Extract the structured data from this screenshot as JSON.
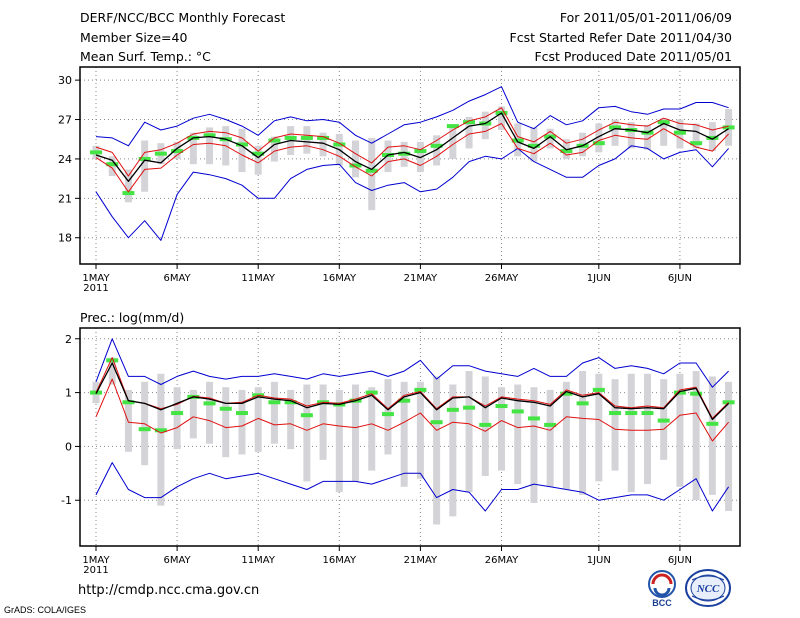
{
  "header": {
    "title": "DERF/NCC/BCC Monthly Forecast",
    "member": "Member Size=40",
    "variable": "Mean Surf. Temp.: °C",
    "period": "For 2011/05/01-2011/06/09",
    "start_date": "Fcst Started Refer Date 2011/04/30",
    "produced": "Fcst Produced Date 2011/05/01"
  },
  "footer": {
    "url": "http://cmdp.ncc.cma.gov.cn",
    "credit": "GrADS: COLA/IGES",
    "logo_left_text": "BCC",
    "logo_right_text": "NCC"
  },
  "colors": {
    "envelope": "#0000d0",
    "spread": "#e01010",
    "mean": "#000000",
    "box": "#d4d4d8",
    "median": "#44e444",
    "grid": "#888888"
  },
  "chart_data": [
    {
      "type": "line",
      "title": "Mean Surf. Temp.: °C",
      "xlabel": "",
      "ylabel": "°C",
      "ylim": [
        16,
        31
      ],
      "yticks": [
        18,
        21,
        24,
        27,
        30
      ],
      "x_tick_labels": [
        {
          "day": 1,
          "label": "1MAY",
          "sub": "2011"
        },
        {
          "day": 6,
          "label": "6MAY"
        },
        {
          "day": 11,
          "label": "11MAY"
        },
        {
          "day": 16,
          "label": "16MAY"
        },
        {
          "day": 21,
          "label": "21MAY"
        },
        {
          "day": 26,
          "label": "26MAY"
        },
        {
          "day": 32,
          "label": "1JUN"
        },
        {
          "day": 37,
          "label": "6JUN"
        }
      ],
      "days": [
        1,
        2,
        3,
        4,
        5,
        6,
        7,
        8,
        9,
        10,
        11,
        12,
        13,
        14,
        15,
        16,
        17,
        18,
        19,
        20,
        21,
        22,
        23,
        24,
        25,
        26,
        27,
        28,
        29,
        30,
        31,
        32,
        33,
        34,
        35,
        36,
        37,
        38,
        39,
        40
      ],
      "max": [
        25.7,
        25.6,
        25.0,
        26.8,
        26.2,
        26.5,
        27.1,
        27.4,
        27.0,
        26.5,
        25.8,
        26.9,
        27.2,
        26.9,
        27.0,
        26.8,
        25.8,
        25.2,
        25.9,
        26.6,
        26.8,
        27.2,
        27.7,
        28.4,
        28.9,
        29.5,
        26.8,
        26.3,
        27.3,
        26.6,
        26.9,
        27.9,
        28.0,
        27.6,
        27.4,
        27.8,
        27.8,
        28.3,
        28.3,
        27.9
      ],
      "spread_upper": [
        24.9,
        24.5,
        22.7,
        24.5,
        24.7,
        25.2,
        25.9,
        26.1,
        26.0,
        25.6,
        24.6,
        25.6,
        25.9,
        25.8,
        25.7,
        25.2,
        24.4,
        23.7,
        24.9,
        25.0,
        24.7,
        25.4,
        26.2,
        26.9,
        27.2,
        27.9,
        25.7,
        25.3,
        26.1,
        25.2,
        25.5,
        26.2,
        26.8,
        26.6,
        26.5,
        27.1,
        26.7,
        26.6,
        26.2,
        26.5
      ],
      "mean": [
        24.3,
        23.9,
        22.3,
        23.9,
        23.7,
        24.8,
        25.6,
        25.7,
        25.5,
        25.0,
        24.1,
        25.1,
        25.4,
        25.3,
        25.2,
        24.7,
        23.8,
        23.2,
        24.3,
        24.5,
        24.1,
        24.7,
        25.6,
        26.5,
        26.7,
        27.5,
        25.3,
        24.8,
        25.7,
        24.7,
        25.0,
        25.7,
        26.3,
        26.2,
        26.0,
        26.7,
        26.2,
        26.1,
        25.5,
        26.3
      ],
      "spread_lower": [
        24.1,
        23.3,
        21.5,
        23.2,
        23.3,
        24.3,
        25.1,
        25.2,
        25.0,
        24.3,
        23.7,
        24.6,
        24.9,
        25.0,
        24.7,
        24.2,
        23.4,
        22.7,
        23.8,
        24.0,
        23.5,
        24.2,
        25.1,
        25.9,
        26.1,
        26.7,
        24.8,
        24.4,
        25.2,
        24.3,
        24.5,
        25.4,
        25.8,
        25.6,
        25.5,
        26.3,
        25.6,
        24.9,
        24.6,
        25.9
      ],
      "min": [
        21.5,
        19.6,
        18.0,
        19.3,
        17.8,
        21.3,
        23.0,
        22.8,
        22.5,
        22.0,
        21.0,
        21.0,
        22.5,
        23.2,
        23.5,
        23.6,
        22.2,
        21.6,
        22.0,
        22.2,
        21.5,
        21.7,
        22.6,
        23.8,
        24.2,
        24.0,
        24.8,
        23.8,
        23.2,
        22.6,
        22.6,
        23.5,
        24.0,
        25.0,
        24.8,
        24.0,
        24.5,
        24.7,
        23.4,
        24.8
      ],
      "box_high": [
        25.0,
        24.2,
        23.2,
        25.4,
        25.2,
        25.3,
        26.0,
        26.4,
        26.5,
        26.3,
        25.0,
        25.7,
        26.5,
        26.5,
        26.0,
        25.9,
        25.4,
        25.6,
        25.4,
        25.3,
        25.3,
        25.8,
        26.5,
        27.2,
        27.6,
        28.0,
        26.7,
        26.4,
        26.3,
        25.5,
        26.0,
        26.7,
        27.0,
        26.8,
        26.6,
        27.1,
        27.0,
        26.7,
        26.8,
        27.8
      ],
      "box_low": [
        24.0,
        22.7,
        20.7,
        21.5,
        23.6,
        24.0,
        23.6,
        23.6,
        23.5,
        23.0,
        22.8,
        23.8,
        24.3,
        24.4,
        24.2,
        23.5,
        22.6,
        20.1,
        23.0,
        23.4,
        23.0,
        23.5,
        24.0,
        24.8,
        25.5,
        26.2,
        24.2,
        23.8,
        24.8,
        24.0,
        24.2,
        24.5,
        25.0,
        24.8,
        24.7,
        25.0,
        24.8,
        24.8,
        24.6,
        25.0
      ],
      "median": [
        24.5,
        23.6,
        21.4,
        24.0,
        24.4,
        24.6,
        25.6,
        25.8,
        25.5,
        25.1,
        24.4,
        25.4,
        25.6,
        25.6,
        25.6,
        25.1,
        23.5,
        23.1,
        24.3,
        24.4,
        24.6,
        25.0,
        26.5,
        26.8,
        26.7,
        27.5,
        25.4,
        25.0,
        25.7,
        24.6,
        25.0,
        25.2,
        26.4,
        26.2,
        26.0,
        26.8,
        26.0,
        25.2,
        25.6,
        26.4
      ]
    },
    {
      "type": "line",
      "title": "Prec.: log(mm/d)",
      "xlabel": "",
      "ylabel": "log(mm/d)",
      "ylim": [
        -1.85,
        2.2
      ],
      "yticks": [
        -1,
        0,
        1,
        2
      ],
      "x_tick_labels": [
        {
          "day": 1,
          "label": "1MAY",
          "sub": "2011"
        },
        {
          "day": 6,
          "label": "6MAY"
        },
        {
          "day": 11,
          "label": "11MAY"
        },
        {
          "day": 16,
          "label": "16MAY"
        },
        {
          "day": 21,
          "label": "21MAY"
        },
        {
          "day": 26,
          "label": "26MAY"
        },
        {
          "day": 32,
          "label": "1JUN"
        },
        {
          "day": 37,
          "label": "6JUN"
        }
      ],
      "days": [
        1,
        2,
        3,
        4,
        5,
        6,
        7,
        8,
        9,
        10,
        11,
        12,
        13,
        14,
        15,
        16,
        17,
        18,
        19,
        20,
        21,
        22,
        23,
        24,
        25,
        26,
        27,
        28,
        29,
        30,
        31,
        32,
        33,
        34,
        35,
        36,
        37,
        38,
        39,
        40
      ],
      "max": [
        1.2,
        2.0,
        1.3,
        1.3,
        1.15,
        1.3,
        1.4,
        1.3,
        1.25,
        1.3,
        1.3,
        1.35,
        1.3,
        1.25,
        1.35,
        1.3,
        1.35,
        1.4,
        1.3,
        1.4,
        1.6,
        1.25,
        1.5,
        1.5,
        1.4,
        1.35,
        1.3,
        1.45,
        1.3,
        1.3,
        1.55,
        1.65,
        1.45,
        1.5,
        1.45,
        1.35,
        1.55,
        1.55,
        1.1,
        1.4
      ],
      "spread_upper": [
        1.0,
        1.65,
        0.85,
        0.8,
        0.7,
        0.78,
        0.93,
        0.9,
        0.8,
        0.82,
        0.95,
        0.9,
        0.88,
        0.75,
        0.82,
        0.8,
        0.88,
        0.98,
        0.7,
        0.95,
        1.02,
        0.7,
        0.92,
        0.92,
        0.75,
        0.92,
        0.88,
        0.85,
        0.78,
        1.05,
        0.95,
        1.0,
        0.75,
        0.72,
        0.75,
        0.72,
        1.05,
        1.1,
        0.52,
        0.82
      ],
      "mean": [
        0.98,
        1.55,
        0.85,
        0.8,
        0.68,
        0.8,
        0.92,
        0.88,
        0.8,
        0.8,
        0.92,
        0.88,
        0.85,
        0.72,
        0.8,
        0.78,
        0.85,
        0.95,
        0.68,
        0.92,
        1.0,
        0.68,
        0.9,
        0.92,
        0.72,
        0.9,
        0.85,
        0.82,
        0.75,
        1.02,
        0.92,
        0.98,
        0.72,
        0.7,
        0.72,
        0.7,
        1.02,
        1.08,
        0.5,
        0.8
      ],
      "spread_lower": [
        0.55,
        1.25,
        0.45,
        0.42,
        0.25,
        0.35,
        0.55,
        0.48,
        0.35,
        0.38,
        0.52,
        0.4,
        0.42,
        0.3,
        0.42,
        0.38,
        0.35,
        0.42,
        0.3,
        0.45,
        0.62,
        0.3,
        0.45,
        0.42,
        0.28,
        0.48,
        0.35,
        0.38,
        0.3,
        0.55,
        0.52,
        0.5,
        0.32,
        0.3,
        0.3,
        0.32,
        0.58,
        0.62,
        0.1,
        0.45
      ],
      "min": [
        -0.9,
        -0.3,
        -0.8,
        -0.95,
        -0.95,
        -0.75,
        -0.6,
        -0.5,
        -0.6,
        -0.55,
        -0.5,
        -0.6,
        -0.7,
        -0.8,
        -0.65,
        -0.65,
        -0.65,
        -0.7,
        -0.6,
        -0.5,
        -0.5,
        -0.95,
        -0.8,
        -0.85,
        -1.2,
        -0.8,
        -0.8,
        -0.7,
        -0.75,
        -0.8,
        -0.85,
        -1.0,
        -0.95,
        -0.9,
        -0.9,
        -1.0,
        -0.8,
        -0.6,
        -1.2,
        -0.75
      ],
      "box_high": [
        1.2,
        1.65,
        1.05,
        1.2,
        1.35,
        1.1,
        1.05,
        1.2,
        1.1,
        1.05,
        1.1,
        1.2,
        1.05,
        1.15,
        1.15,
        1.05,
        1.15,
        1.1,
        1.25,
        1.2,
        1.2,
        1.3,
        1.15,
        1.4,
        1.3,
        1.1,
        1.15,
        1.1,
        1.05,
        1.2,
        1.4,
        1.35,
        1.25,
        1.35,
        1.35,
        1.25,
        1.35,
        1.4,
        1.3,
        1.2
      ],
      "box_low": [
        0.8,
        1.15,
        -0.1,
        -0.35,
        -1.1,
        -0.05,
        0.15,
        0.05,
        -0.2,
        -0.15,
        -0.1,
        0.05,
        -0.05,
        -0.65,
        -0.25,
        -0.85,
        -0.65,
        -0.45,
        -0.15,
        -0.75,
        -0.6,
        -1.45,
        -1.3,
        -0.85,
        -0.55,
        -0.45,
        -0.7,
        -1.05,
        -0.75,
        -0.8,
        -0.9,
        -0.65,
        -0.45,
        -0.85,
        -0.7,
        -0.25,
        -0.75,
        -1.0,
        -0.9,
        -1.2
      ],
      "median": [
        1.0,
        1.6,
        0.82,
        0.32,
        0.3,
        0.62,
        0.92,
        0.8,
        0.7,
        0.62,
        0.95,
        0.82,
        0.82,
        0.58,
        0.82,
        0.78,
        0.85,
        1.0,
        0.6,
        0.85,
        1.05,
        0.45,
        0.68,
        0.72,
        0.4,
        0.75,
        0.65,
        0.52,
        0.4,
        0.98,
        0.8,
        1.05,
        0.62,
        0.62,
        0.62,
        0.48,
        1.0,
        0.98,
        0.42,
        0.82
      ]
    }
  ]
}
